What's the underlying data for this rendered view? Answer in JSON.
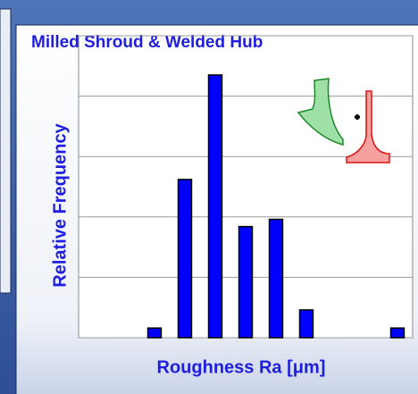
{
  "chart_data": {
    "type": "bar",
    "title": "Milled Shroud & Welded Hub",
    "x_label": "Roughness Ra [μm]",
    "y_label": "Relative Frequency",
    "categories": [
      null,
      null,
      null,
      null,
      null,
      null,
      null,
      null,
      null,
      null,
      null
    ],
    "values": [
      0,
      0,
      0.16,
      2.62,
      4.35,
      1.84,
      1.96,
      0.46,
      0,
      0,
      0.16
    ],
    "color": "#0000ff",
    "ylim": [
      0,
      5
    ],
    "yticks": [
      0,
      1,
      2,
      3,
      4,
      5
    ],
    "grid": true
  }
}
